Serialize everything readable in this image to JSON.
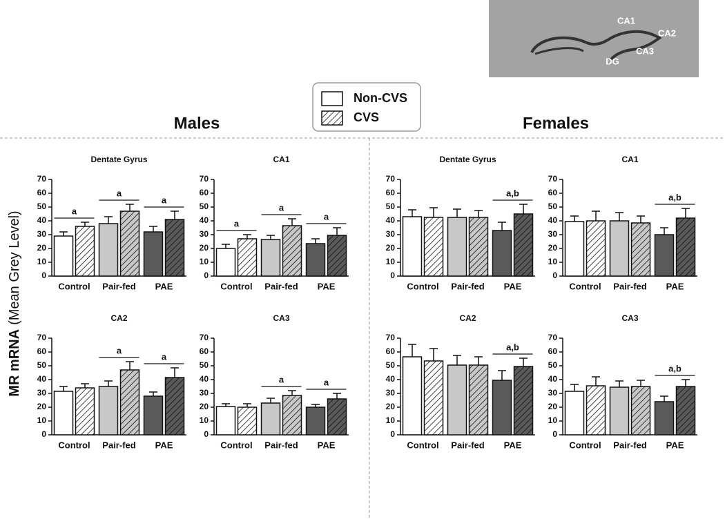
{
  "figure": {
    "group_titles": [
      "Males",
      "Females"
    ],
    "y_label_main": "MR mRNA",
    "y_label_sub": "(Mean Grey Level)",
    "inset_labels": [
      "CA1",
      "CA2",
      "CA3",
      "DG"
    ]
  },
  "chart_data": [
    {
      "type": "bar",
      "title": "Dentate Gyrus",
      "categories": [
        "Control",
        "Pair-fed",
        "PAE"
      ],
      "ylim": [
        0,
        70
      ],
      "yticks": [
        0,
        10,
        20,
        30,
        40,
        50,
        60,
        70
      ],
      "significance": [
        "a",
        "a",
        "a"
      ],
      "series": [
        {
          "name": "Non-CVS",
          "colors": [
            "#ffffff",
            "#c8c8c8",
            "#5a5a5a"
          ],
          "hatch": false,
          "values": [
            29,
            38,
            32
          ],
          "errors": [
            3,
            5,
            4
          ]
        },
        {
          "name": "CVS",
          "colors": [
            "#ffffff",
            "#c8c8c8",
            "#5a5a5a"
          ],
          "hatch": true,
          "values": [
            36,
            47,
            41
          ],
          "errors": [
            3,
            5,
            6
          ]
        }
      ]
    },
    {
      "type": "bar",
      "title": "CA1",
      "categories": [
        "Control",
        "Pair-fed",
        "PAE"
      ],
      "ylim": [
        0,
        70
      ],
      "yticks": [
        0,
        10,
        20,
        30,
        40,
        50,
        60,
        70
      ],
      "significance": [
        "a",
        "a",
        "a"
      ],
      "series": [
        {
          "name": "Non-CVS",
          "colors": [
            "#ffffff",
            "#c8c8c8",
            "#5a5a5a"
          ],
          "hatch": false,
          "values": [
            20,
            26.5,
            23.5
          ],
          "errors": [
            3,
            3,
            3.5
          ]
        },
        {
          "name": "CVS",
          "colors": [
            "#ffffff",
            "#c8c8c8",
            "#5a5a5a"
          ],
          "hatch": true,
          "values": [
            27,
            36.5,
            29.5
          ],
          "errors": [
            3,
            5,
            5.5
          ]
        }
      ]
    },
    {
      "type": "bar",
      "title": "Dentate Gyrus",
      "categories": [
        "Control",
        "Pair-fed",
        "PAE"
      ],
      "ylim": [
        0,
        70
      ],
      "yticks": [
        0,
        10,
        20,
        30,
        40,
        50,
        60,
        70
      ],
      "significance": [
        null,
        null,
        "a,b"
      ],
      "series": [
        {
          "name": "Non-CVS",
          "colors": [
            "#ffffff",
            "#c8c8c8",
            "#5a5a5a"
          ],
          "hatch": false,
          "values": [
            43,
            42.5,
            33
          ],
          "errors": [
            5,
            6,
            6
          ]
        },
        {
          "name": "CVS",
          "colors": [
            "#ffffff",
            "#c8c8c8",
            "#5a5a5a"
          ],
          "hatch": true,
          "values": [
            42.5,
            42.5,
            45
          ],
          "errors": [
            7,
            5,
            7
          ]
        }
      ]
    },
    {
      "type": "bar",
      "title": "CA1",
      "categories": [
        "Control",
        "Pair-fed",
        "PAE"
      ],
      "ylim": [
        0,
        70
      ],
      "yticks": [
        0,
        10,
        20,
        30,
        40,
        50,
        60,
        70
      ],
      "significance": [
        null,
        null,
        "a,b"
      ],
      "series": [
        {
          "name": "Non-CVS",
          "colors": [
            "#ffffff",
            "#c8c8c8",
            "#5a5a5a"
          ],
          "hatch": false,
          "values": [
            39.5,
            40,
            30
          ],
          "errors": [
            4,
            6,
            5
          ]
        },
        {
          "name": "CVS",
          "colors": [
            "#ffffff",
            "#c8c8c8",
            "#5a5a5a"
          ],
          "hatch": true,
          "values": [
            40,
            38.5,
            42
          ],
          "errors": [
            7,
            5,
            7
          ]
        }
      ]
    },
    {
      "type": "bar",
      "title": "CA2",
      "categories": [
        "Control",
        "Pair-fed",
        "PAE"
      ],
      "ylim": [
        0,
        70
      ],
      "yticks": [
        0,
        10,
        20,
        30,
        40,
        50,
        60,
        70
      ],
      "significance": [
        null,
        "a",
        "a"
      ],
      "series": [
        {
          "name": "Non-CVS",
          "colors": [
            "#ffffff",
            "#c8c8c8",
            "#5a5a5a"
          ],
          "hatch": false,
          "values": [
            31.5,
            35,
            28
          ],
          "errors": [
            3.5,
            4,
            3
          ]
        },
        {
          "name": "CVS",
          "colors": [
            "#ffffff",
            "#c8c8c8",
            "#5a5a5a"
          ],
          "hatch": true,
          "values": [
            34,
            47,
            41.5
          ],
          "errors": [
            3,
            6,
            7
          ]
        }
      ]
    },
    {
      "type": "bar",
      "title": "CA3",
      "categories": [
        "Control",
        "Pair-fed",
        "PAE"
      ],
      "ylim": [
        0,
        70
      ],
      "yticks": [
        0,
        10,
        20,
        30,
        40,
        50,
        60,
        70
      ],
      "significance": [
        null,
        "a",
        "a"
      ],
      "series": [
        {
          "name": "Non-CVS",
          "colors": [
            "#ffffff",
            "#c8c8c8",
            "#5a5a5a"
          ],
          "hatch": false,
          "values": [
            20.5,
            23,
            20
          ],
          "errors": [
            2,
            3.5,
            2
          ]
        },
        {
          "name": "CVS",
          "colors": [
            "#ffffff",
            "#c8c8c8",
            "#5a5a5a"
          ],
          "hatch": true,
          "values": [
            20,
            28.5,
            26
          ],
          "errors": [
            2.5,
            3.5,
            4
          ]
        }
      ]
    },
    {
      "type": "bar",
      "title": "CA2",
      "categories": [
        "Control",
        "Pair-fed",
        "PAE"
      ],
      "ylim": [
        0,
        70
      ],
      "yticks": [
        0,
        10,
        20,
        30,
        40,
        50,
        60,
        70
      ],
      "significance": [
        null,
        null,
        "a,b"
      ],
      "series": [
        {
          "name": "Non-CVS",
          "colors": [
            "#ffffff",
            "#c8c8c8",
            "#5a5a5a"
          ],
          "hatch": false,
          "values": [
            56.5,
            50.5,
            39.5
          ],
          "errors": [
            9,
            7,
            7
          ]
        },
        {
          "name": "CVS",
          "colors": [
            "#ffffff",
            "#c8c8c8",
            "#5a5a5a"
          ],
          "hatch": true,
          "values": [
            53.5,
            50.5,
            49.5
          ],
          "errors": [
            9,
            6,
            6
          ]
        }
      ]
    },
    {
      "type": "bar",
      "title": "CA3",
      "categories": [
        "Control",
        "Pair-fed",
        "PAE"
      ],
      "ylim": [
        0,
        70
      ],
      "yticks": [
        0,
        10,
        20,
        30,
        40,
        50,
        60,
        70
      ],
      "significance": [
        null,
        null,
        "a,b"
      ],
      "series": [
        {
          "name": "Non-CVS",
          "colors": [
            "#ffffff",
            "#c8c8c8",
            "#5a5a5a"
          ],
          "hatch": false,
          "values": [
            31.5,
            34.5,
            24
          ],
          "errors": [
            5,
            4.5,
            4
          ]
        },
        {
          "name": "CVS",
          "colors": [
            "#ffffff",
            "#c8c8c8",
            "#5a5a5a"
          ],
          "hatch": true,
          "values": [
            35.5,
            35,
            35
          ],
          "errors": [
            6.5,
            4.5,
            5
          ]
        }
      ]
    }
  ]
}
